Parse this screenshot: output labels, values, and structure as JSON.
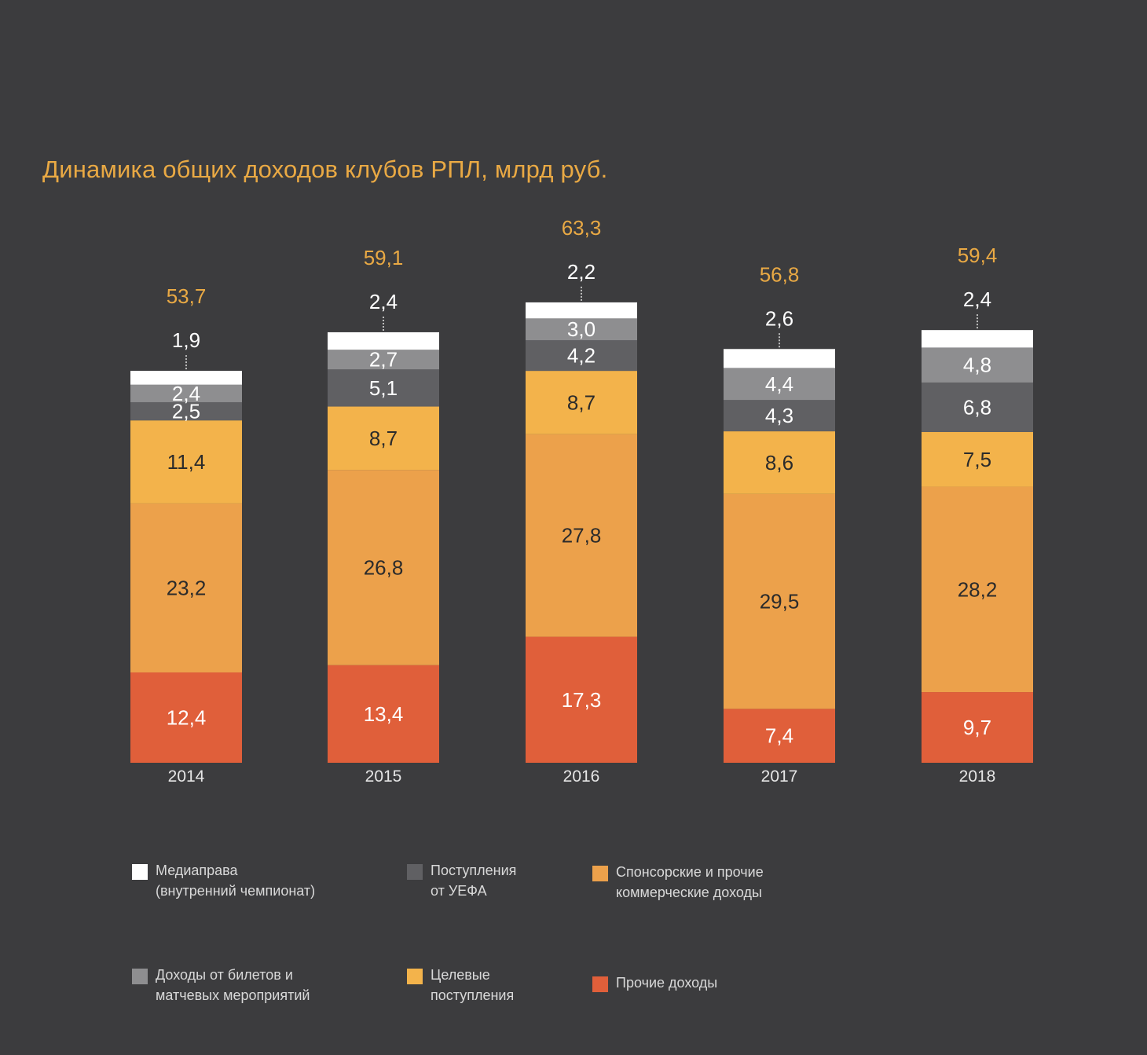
{
  "chart_data": {
    "type": "bar",
    "stacked": true,
    "title": "Динамика общих доходов клубов РПЛ, млрд руб.",
    "xlabel": "",
    "ylabel": "",
    "ylim": [
      0,
      63.3
    ],
    "grid": false,
    "legend_position": "bottom",
    "categories": [
      "2014",
      "2015",
      "2016",
      "2017",
      "2018"
    ],
    "totals": [
      53.7,
      59.1,
      63.3,
      56.8,
      59.4
    ],
    "totals_labels": [
      "53,7",
      "59,1",
      "63,3",
      "56,8",
      "59,4"
    ],
    "series": [
      {
        "key": "other",
        "name": "Прочие доходы",
        "color": "#e05f3a",
        "label_color": "#ffffff",
        "values": [
          12.4,
          13.4,
          17.3,
          7.4,
          9.7
        ],
        "labels": [
          "12,4",
          "13,4",
          "17,3",
          "7,4",
          "9,7"
        ]
      },
      {
        "key": "sponsor",
        "name": "Спонсорские и прочие\nкоммерческие доходы",
        "color": "#eca14b",
        "label_color": "#2b2b2b",
        "values": [
          23.2,
          26.8,
          27.8,
          29.5,
          28.2
        ],
        "labels": [
          "23,2",
          "26,8",
          "27,8",
          "29,5",
          "28,2"
        ]
      },
      {
        "key": "target",
        "name": "Целевые\nпоступления",
        "color": "#f3b34b",
        "label_color": "#2b2b2b",
        "values": [
          11.4,
          8.7,
          8.7,
          8.6,
          7.5
        ],
        "labels": [
          "11,4",
          "8,7",
          "8,7",
          "8,6",
          "7,5"
        ]
      },
      {
        "key": "uefa",
        "name": "Поступления\nот УЕФА",
        "color": "#606063",
        "label_color": "#ffffff",
        "values": [
          2.5,
          5.1,
          4.2,
          4.3,
          6.8
        ],
        "labels": [
          "2,5",
          "5,1",
          "4,2",
          "4,3",
          "6,8"
        ]
      },
      {
        "key": "tickets",
        "name": "Доходы от билетов и\nматчевых мероприятий",
        "color": "#8e8e90",
        "label_color": "#ffffff",
        "values": [
          2.4,
          2.7,
          3.0,
          4.4,
          4.8
        ],
        "labels": [
          "2,4",
          "2,7",
          "3,0",
          "4,4",
          "4,8"
        ]
      },
      {
        "key": "media",
        "name": "Медиаправа\n(внутренний чемпионат)",
        "color": "#ffffff",
        "label_color": "#ffffff",
        "values": [
          1.9,
          2.4,
          2.2,
          2.6,
          2.4
        ],
        "labels": [
          "1,9",
          "2,4",
          "2,2",
          "2,6",
          "2,4"
        ],
        "label_outside": true
      }
    ],
    "legend_order": [
      "media",
      "uefa",
      "sponsor",
      "tickets",
      "target",
      "other"
    ]
  },
  "colors": {
    "title": "#e9a944",
    "total_label": "#e9a944",
    "axis_label": "#e6e6e6",
    "background": "#3c3c3e"
  }
}
